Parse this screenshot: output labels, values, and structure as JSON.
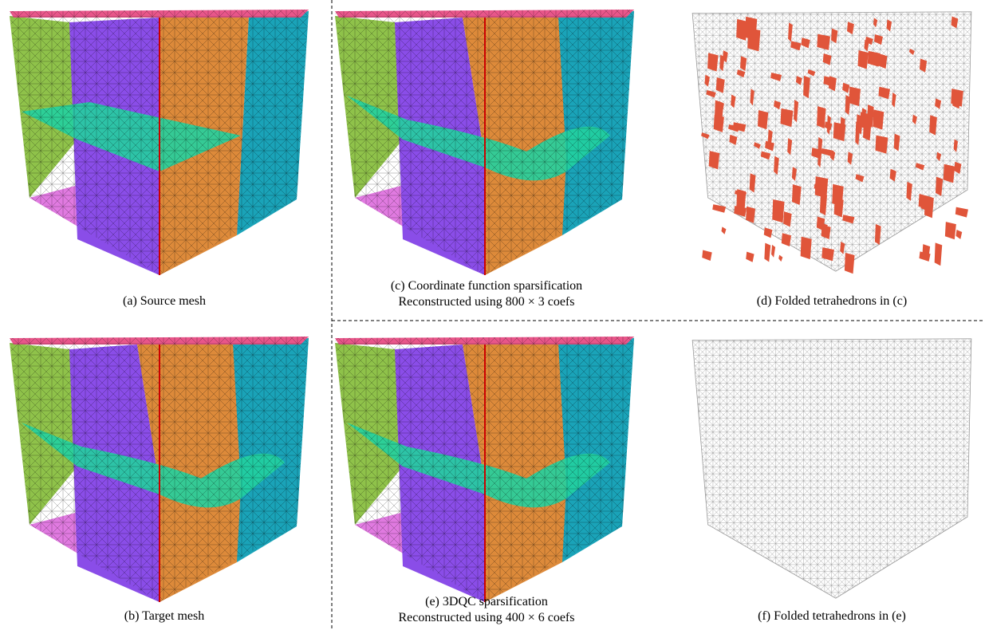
{
  "panels": [
    {
      "caption": [
        "(a) Source mesh"
      ]
    },
    {
      "caption": [
        "(b) Target mesh"
      ]
    },
    {
      "caption": [
        "(c) Coordinate function sparsification",
        "Reconstructed using 800 × 3 coefs"
      ]
    },
    {
      "caption": [
        "(e) 3DQC sparsification",
        "Reconstructed using 400 × 6 coefs"
      ]
    },
    {
      "caption": [
        "(d) Folded tetrahedrons in (c)"
      ]
    },
    {
      "caption": [
        "(f) Folded tetrahedrons in (e)"
      ]
    }
  ]
}
